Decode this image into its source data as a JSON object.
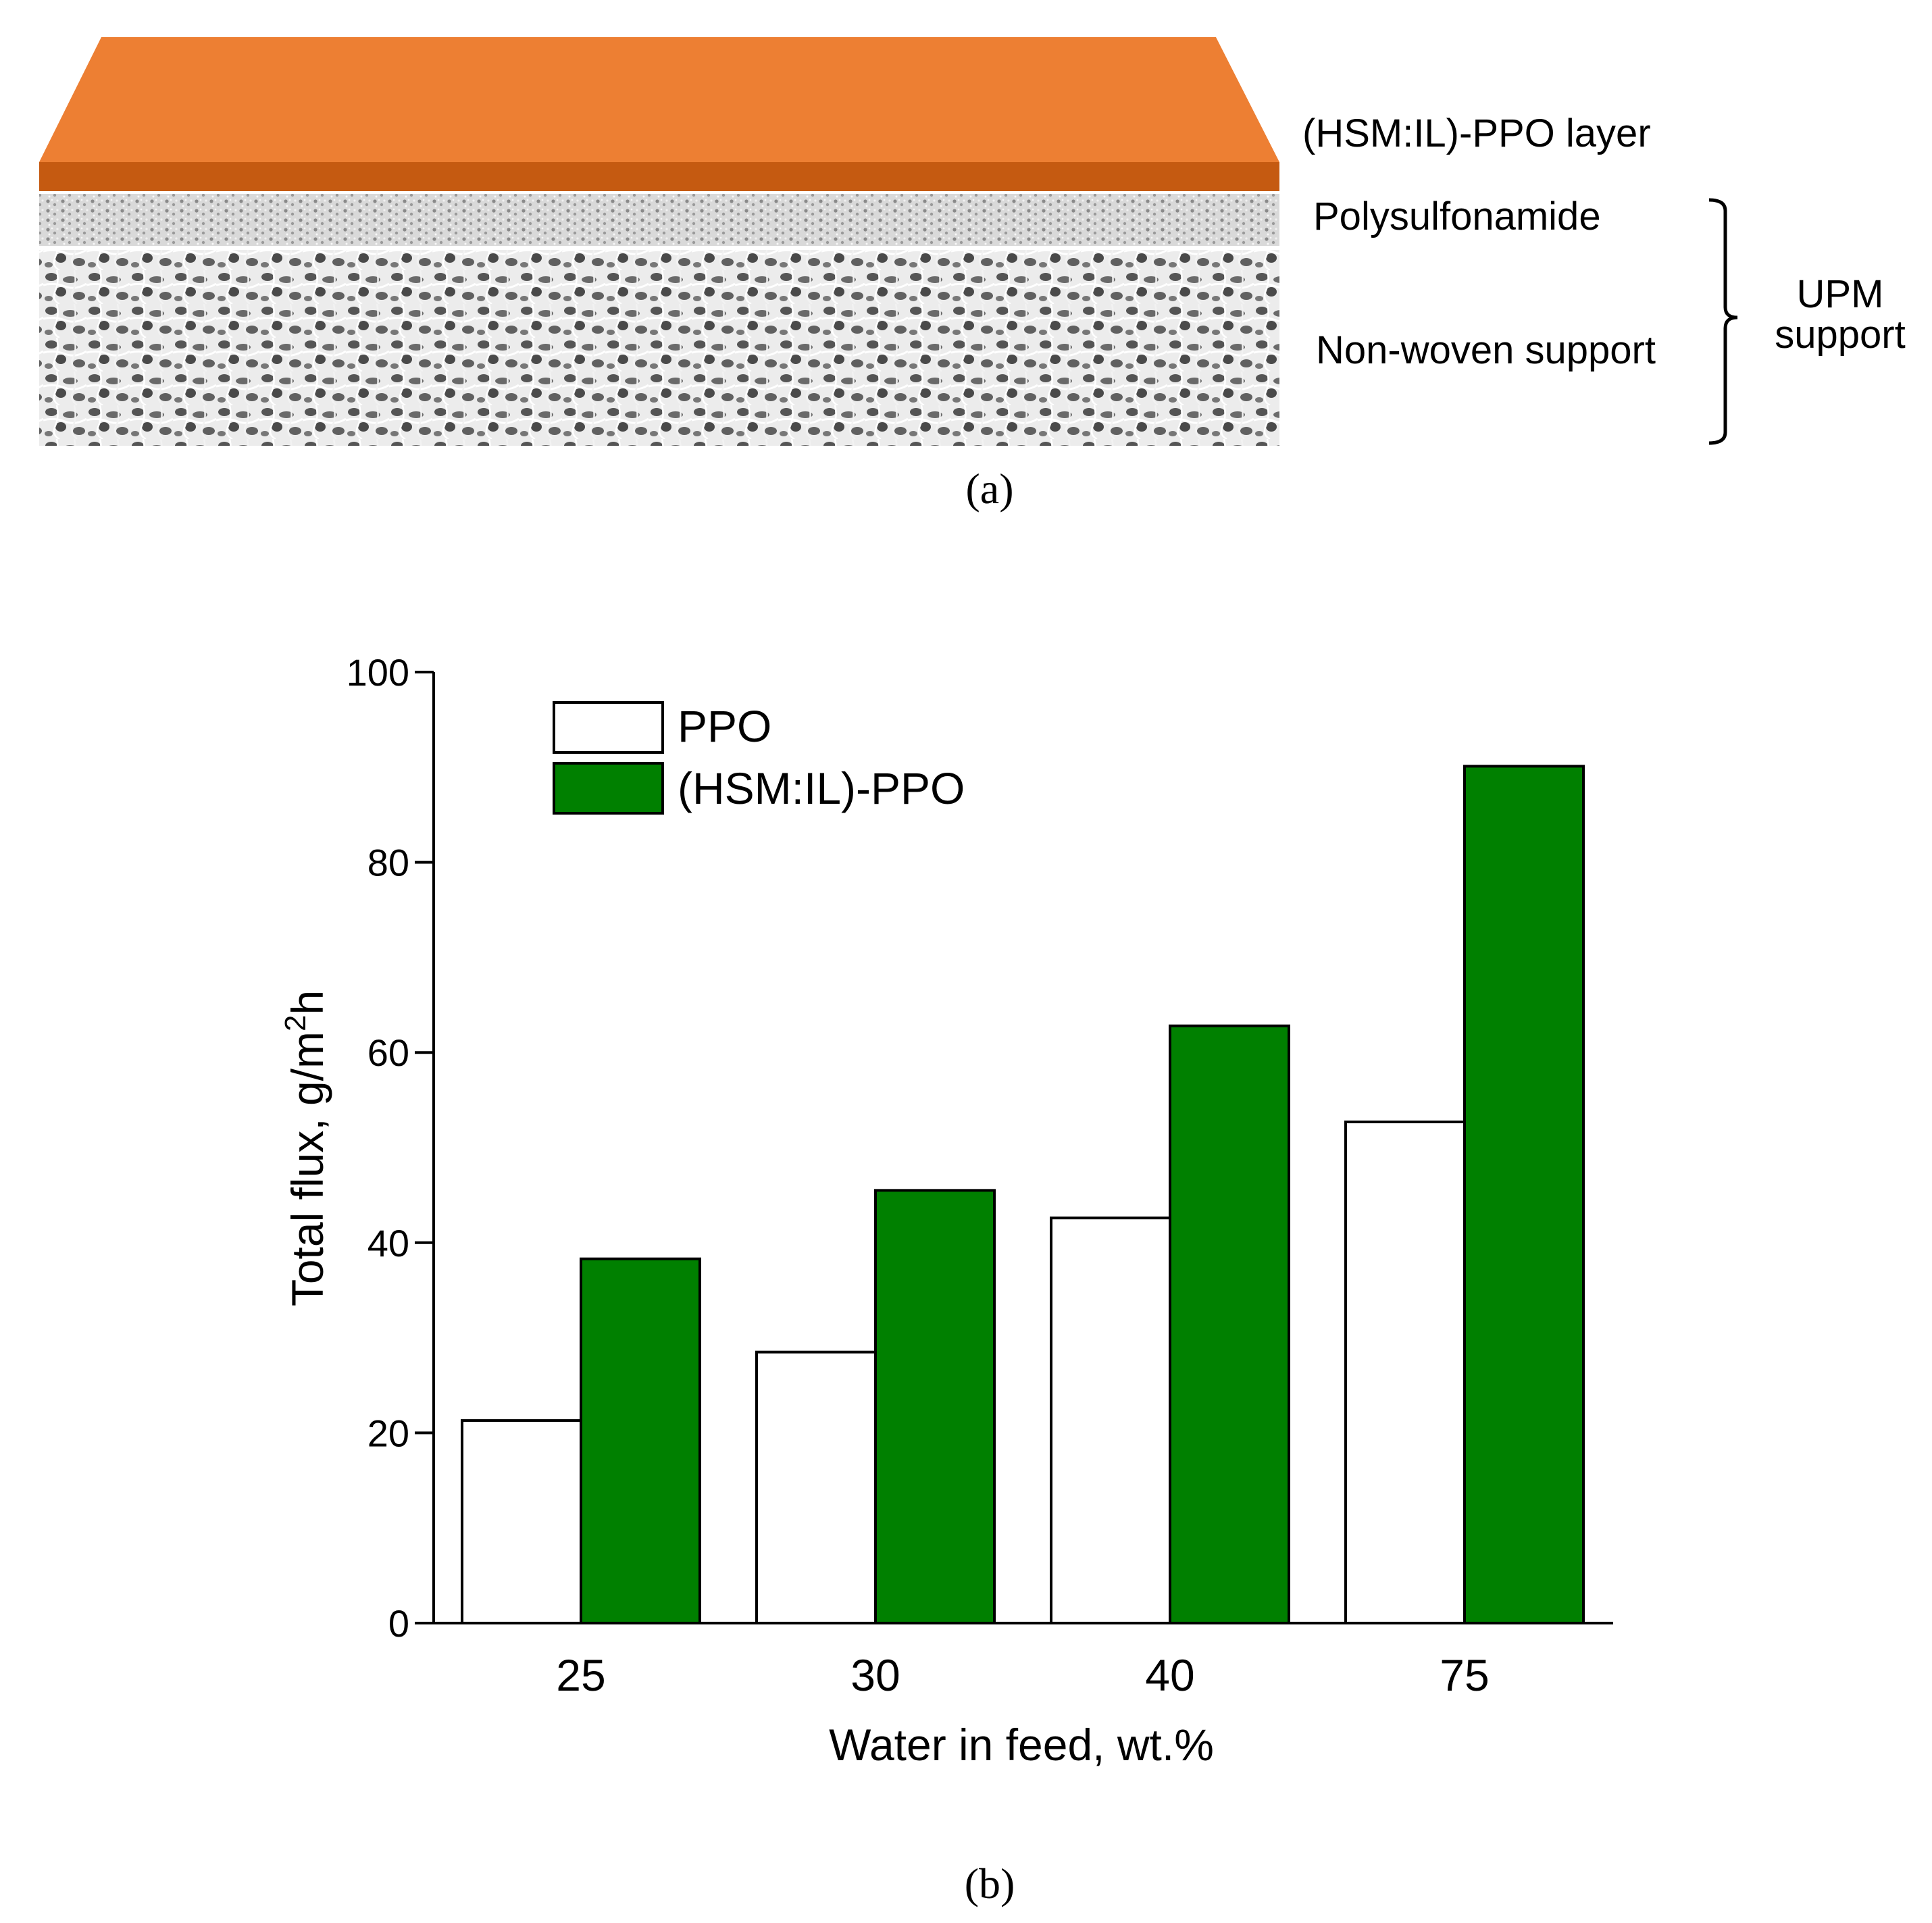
{
  "panel_a": {
    "layer_top_label": "(HSM:IL)-PPO layer",
    "layer_mid_label": "Polysulfonamide",
    "layer_bottom_label": "Non-woven support",
    "bracket_label_line1": "UPM",
    "bracket_label_line2": "support",
    "caption": "(a)",
    "colors": {
      "top_layer": "#ED7F33",
      "top_layer_edge": "#C55A11",
      "support_bg": "#E9E9E9",
      "support_pores": "#3C3C3C"
    }
  },
  "panel_b": {
    "caption": "(b)"
  },
  "chart_data": {
    "type": "bar",
    "categories": [
      "25",
      "30",
      "40",
      "75"
    ],
    "series": [
      {
        "name": "PPO",
        "values": [
          21.3,
          28.5,
          42.6,
          52.7
        ],
        "color": "#FFFFFF"
      },
      {
        "name": "(HSM:IL)-PPO",
        "values": [
          38.3,
          45.5,
          62.8,
          90.1
        ],
        "color": "#008000"
      }
    ],
    "xlabel": "Water in feed, wt.%",
    "ylabel": {
      "main": "Total flux, g/m",
      "sup": "2",
      "tail": "h"
    },
    "ylim": [
      0,
      100
    ],
    "yticks": [
      "0",
      "20",
      "40",
      "60",
      "80",
      "100"
    ],
    "legend_position": "top-left",
    "grid": false
  }
}
